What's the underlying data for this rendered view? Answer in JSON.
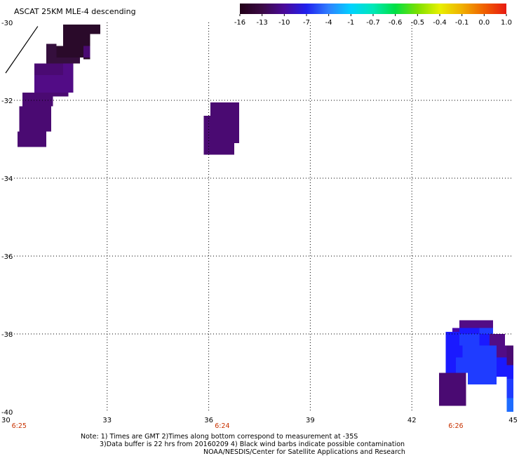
{
  "chart_data": {
    "type": "heatmap",
    "title": "ASCAT 25KM MLE-4 descending",
    "xlim": [
      30,
      45
    ],
    "ylim": [
      -40,
      -30
    ],
    "x_ticks": [
      "30",
      "33",
      "36",
      "39",
      "42",
      "45"
    ],
    "y_ticks": [
      "-30",
      "-32",
      "-34",
      "-36",
      "-38",
      "-40"
    ],
    "grid": true,
    "colorbar": {
      "labels": [
        "-16",
        "-13",
        "-10",
        "-7",
        "-4",
        "-1",
        "-0.7",
        "-0.6",
        "-0.5",
        "-0.4",
        "-0.1",
        "0.0",
        "1.0"
      ],
      "colors": [
        "#220018",
        "#3b0a44",
        "#4a0a9a",
        "#2020ee",
        "#2f80ff",
        "#00d2ff",
        "#00e8b8",
        "#00e044",
        "#7de000",
        "#e8f000",
        "#f0b000",
        "#f06000",
        "#e81a12"
      ]
    },
    "times": [
      {
        "label": "6:25",
        "x": 30.4
      },
      {
        "label": "6:24",
        "x": 36.4
      },
      {
        "label": "6:26",
        "x": 43.3
      }
    ],
    "wind_barb": {
      "from": [
        30.0,
        -31.3
      ],
      "to": [
        30.95,
        -30.1
      ]
    },
    "cells": [
      {
        "x0": 31.7,
        "x1": 32.8,
        "y0": -30.3,
        "y1": -30.05,
        "value": -16
      },
      {
        "x0": 31.7,
        "x1": 32.2,
        "y0": -30.45,
        "y1": -30.3,
        "value": -16
      },
      {
        "x0": 32.2,
        "x1": 32.5,
        "y0": -30.45,
        "y1": -30.3,
        "value": -15
      },
      {
        "x0": 31.7,
        "x1": 32.2,
        "y0": -30.6,
        "y1": -30.45,
        "value": -15
      },
      {
        "x0": 32.2,
        "x1": 32.5,
        "y0": -30.6,
        "y1": -30.45,
        "value": -16
      },
      {
        "x0": 31.5,
        "x1": 32.3,
        "y0": -30.9,
        "y1": -30.6,
        "value": -14
      },
      {
        "x0": 32.3,
        "x1": 32.5,
        "y0": -30.9,
        "y1": -30.6,
        "value": -12
      },
      {
        "x0": 31.2,
        "x1": 31.5,
        "y0": -30.9,
        "y1": -30.55,
        "value": -13
      },
      {
        "x0": 32.3,
        "x1": 32.5,
        "y0": -30.95,
        "y1": -30.9,
        "value": -16
      },
      {
        "x0": 31.2,
        "x1": 32.2,
        "y0": -31.05,
        "y1": -30.9,
        "value": -13
      },
      {
        "x0": 31.2,
        "x1": 31.7,
        "y0": -31.1,
        "y1": -31.05,
        "value": -12
      },
      {
        "x0": 30.85,
        "x1": 31.7,
        "y0": -31.35,
        "y1": -31.05,
        "value": -12
      },
      {
        "x0": 31.7,
        "x1": 32.0,
        "y0": -31.6,
        "y1": -31.05,
        "value": -11
      },
      {
        "x0": 30.85,
        "x1": 31.85,
        "y0": -31.8,
        "y1": -31.35,
        "value": -11
      },
      {
        "x0": 31.85,
        "x1": 32.0,
        "y0": -31.8,
        "y1": -31.6,
        "value": -11
      },
      {
        "x0": 31.1,
        "x1": 31.85,
        "y0": -31.9,
        "y1": -31.8,
        "value": -12
      },
      {
        "x0": 30.5,
        "x1": 31.4,
        "y0": -32.15,
        "y1": -31.8,
        "value": -12
      },
      {
        "x0": 30.4,
        "x1": 31.35,
        "y0": -32.8,
        "y1": -32.15,
        "value": -12
      },
      {
        "x0": 30.35,
        "x1": 31.2,
        "y0": -33.2,
        "y1": -32.8,
        "value": -12
      },
      {
        "x0": 36.05,
        "x1": 36.9,
        "y0": -32.4,
        "y1": -32.05,
        "value": -12
      },
      {
        "x0": 35.85,
        "x1": 36.9,
        "y0": -33.1,
        "y1": -32.4,
        "value": -12
      },
      {
        "x0": 35.85,
        "x1": 36.75,
        "y0": -33.4,
        "y1": -33.1,
        "value": -12
      },
      {
        "x0": 43.4,
        "x1": 44.4,
        "y0": -37.85,
        "y1": -37.65,
        "value": -11
      },
      {
        "x0": 43.2,
        "x1": 43.4,
        "y0": -37.95,
        "y1": -37.85,
        "value": -9
      },
      {
        "x0": 43.4,
        "x1": 44.0,
        "y0": -38.0,
        "y1": -37.85,
        "value": -8
      },
      {
        "x0": 44.0,
        "x1": 44.4,
        "y0": -38.0,
        "y1": -37.85,
        "value": -7
      },
      {
        "x0": 43.0,
        "x1": 43.4,
        "y0": -38.3,
        "y1": -37.95,
        "value": -8
      },
      {
        "x0": 43.4,
        "x1": 44.0,
        "y0": -38.3,
        "y1": -38.0,
        "value": -7
      },
      {
        "x0": 44.0,
        "x1": 44.3,
        "y0": -38.3,
        "y1": -38.0,
        "value": -8
      },
      {
        "x0": 44.3,
        "x1": 44.75,
        "y0": -38.3,
        "y1": -38.0,
        "value": -11
      },
      {
        "x0": 43.0,
        "x1": 43.5,
        "y0": -38.6,
        "y1": -38.3,
        "value": -8
      },
      {
        "x0": 43.5,
        "x1": 44.1,
        "y0": -38.6,
        "y1": -38.3,
        "value": -7
      },
      {
        "x0": 44.1,
        "x1": 44.5,
        "y0": -38.6,
        "y1": -38.3,
        "value": -7
      },
      {
        "x0": 44.5,
        "x1": 44.8,
        "y0": -38.6,
        "y1": -38.3,
        "value": -11
      },
      {
        "x0": 44.8,
        "x1": 45.0,
        "y0": -38.8,
        "y1": -38.3,
        "value": -12
      },
      {
        "x0": 43.0,
        "x1": 43.3,
        "y0": -39.0,
        "y1": -38.6,
        "value": -8
      },
      {
        "x0": 43.3,
        "x1": 43.8,
        "y0": -39.0,
        "y1": -38.6,
        "value": -7
      },
      {
        "x0": 43.8,
        "x1": 44.5,
        "y0": -39.0,
        "y1": -38.6,
        "value": -7
      },
      {
        "x0": 44.5,
        "x1": 44.8,
        "y0": -39.0,
        "y1": -38.6,
        "value": -8
      },
      {
        "x0": 43.65,
        "x1": 44.5,
        "y0": -39.3,
        "y1": -39.0,
        "value": -7
      },
      {
        "x0": 44.5,
        "x1": 44.8,
        "y0": -39.1,
        "y1": -39.0,
        "value": -8
      },
      {
        "x0": 44.8,
        "x1": 45.0,
        "y0": -39.15,
        "y1": -38.8,
        "value": -8
      },
      {
        "x0": 44.8,
        "x1": 45.0,
        "y0": -39.65,
        "y1": -39.15,
        "value": -7
      },
      {
        "x0": 44.8,
        "x1": 45.0,
        "y0": -40.0,
        "y1": -39.65,
        "value": -6
      },
      {
        "x0": 42.8,
        "x1": 43.6,
        "y0": -39.85,
        "y1": -39.0,
        "value": -12
      }
    ],
    "notes": [
      "Note: 1) Times are GMT 2)Times along bottom correspond to measurement at -35S",
      "3)Data buffer is 22 hrs from 20160209 4) Black wind barbs indicate possible contamination",
      "NOAA/NESDIS/Center for Satellite Applications and Research"
    ]
  }
}
